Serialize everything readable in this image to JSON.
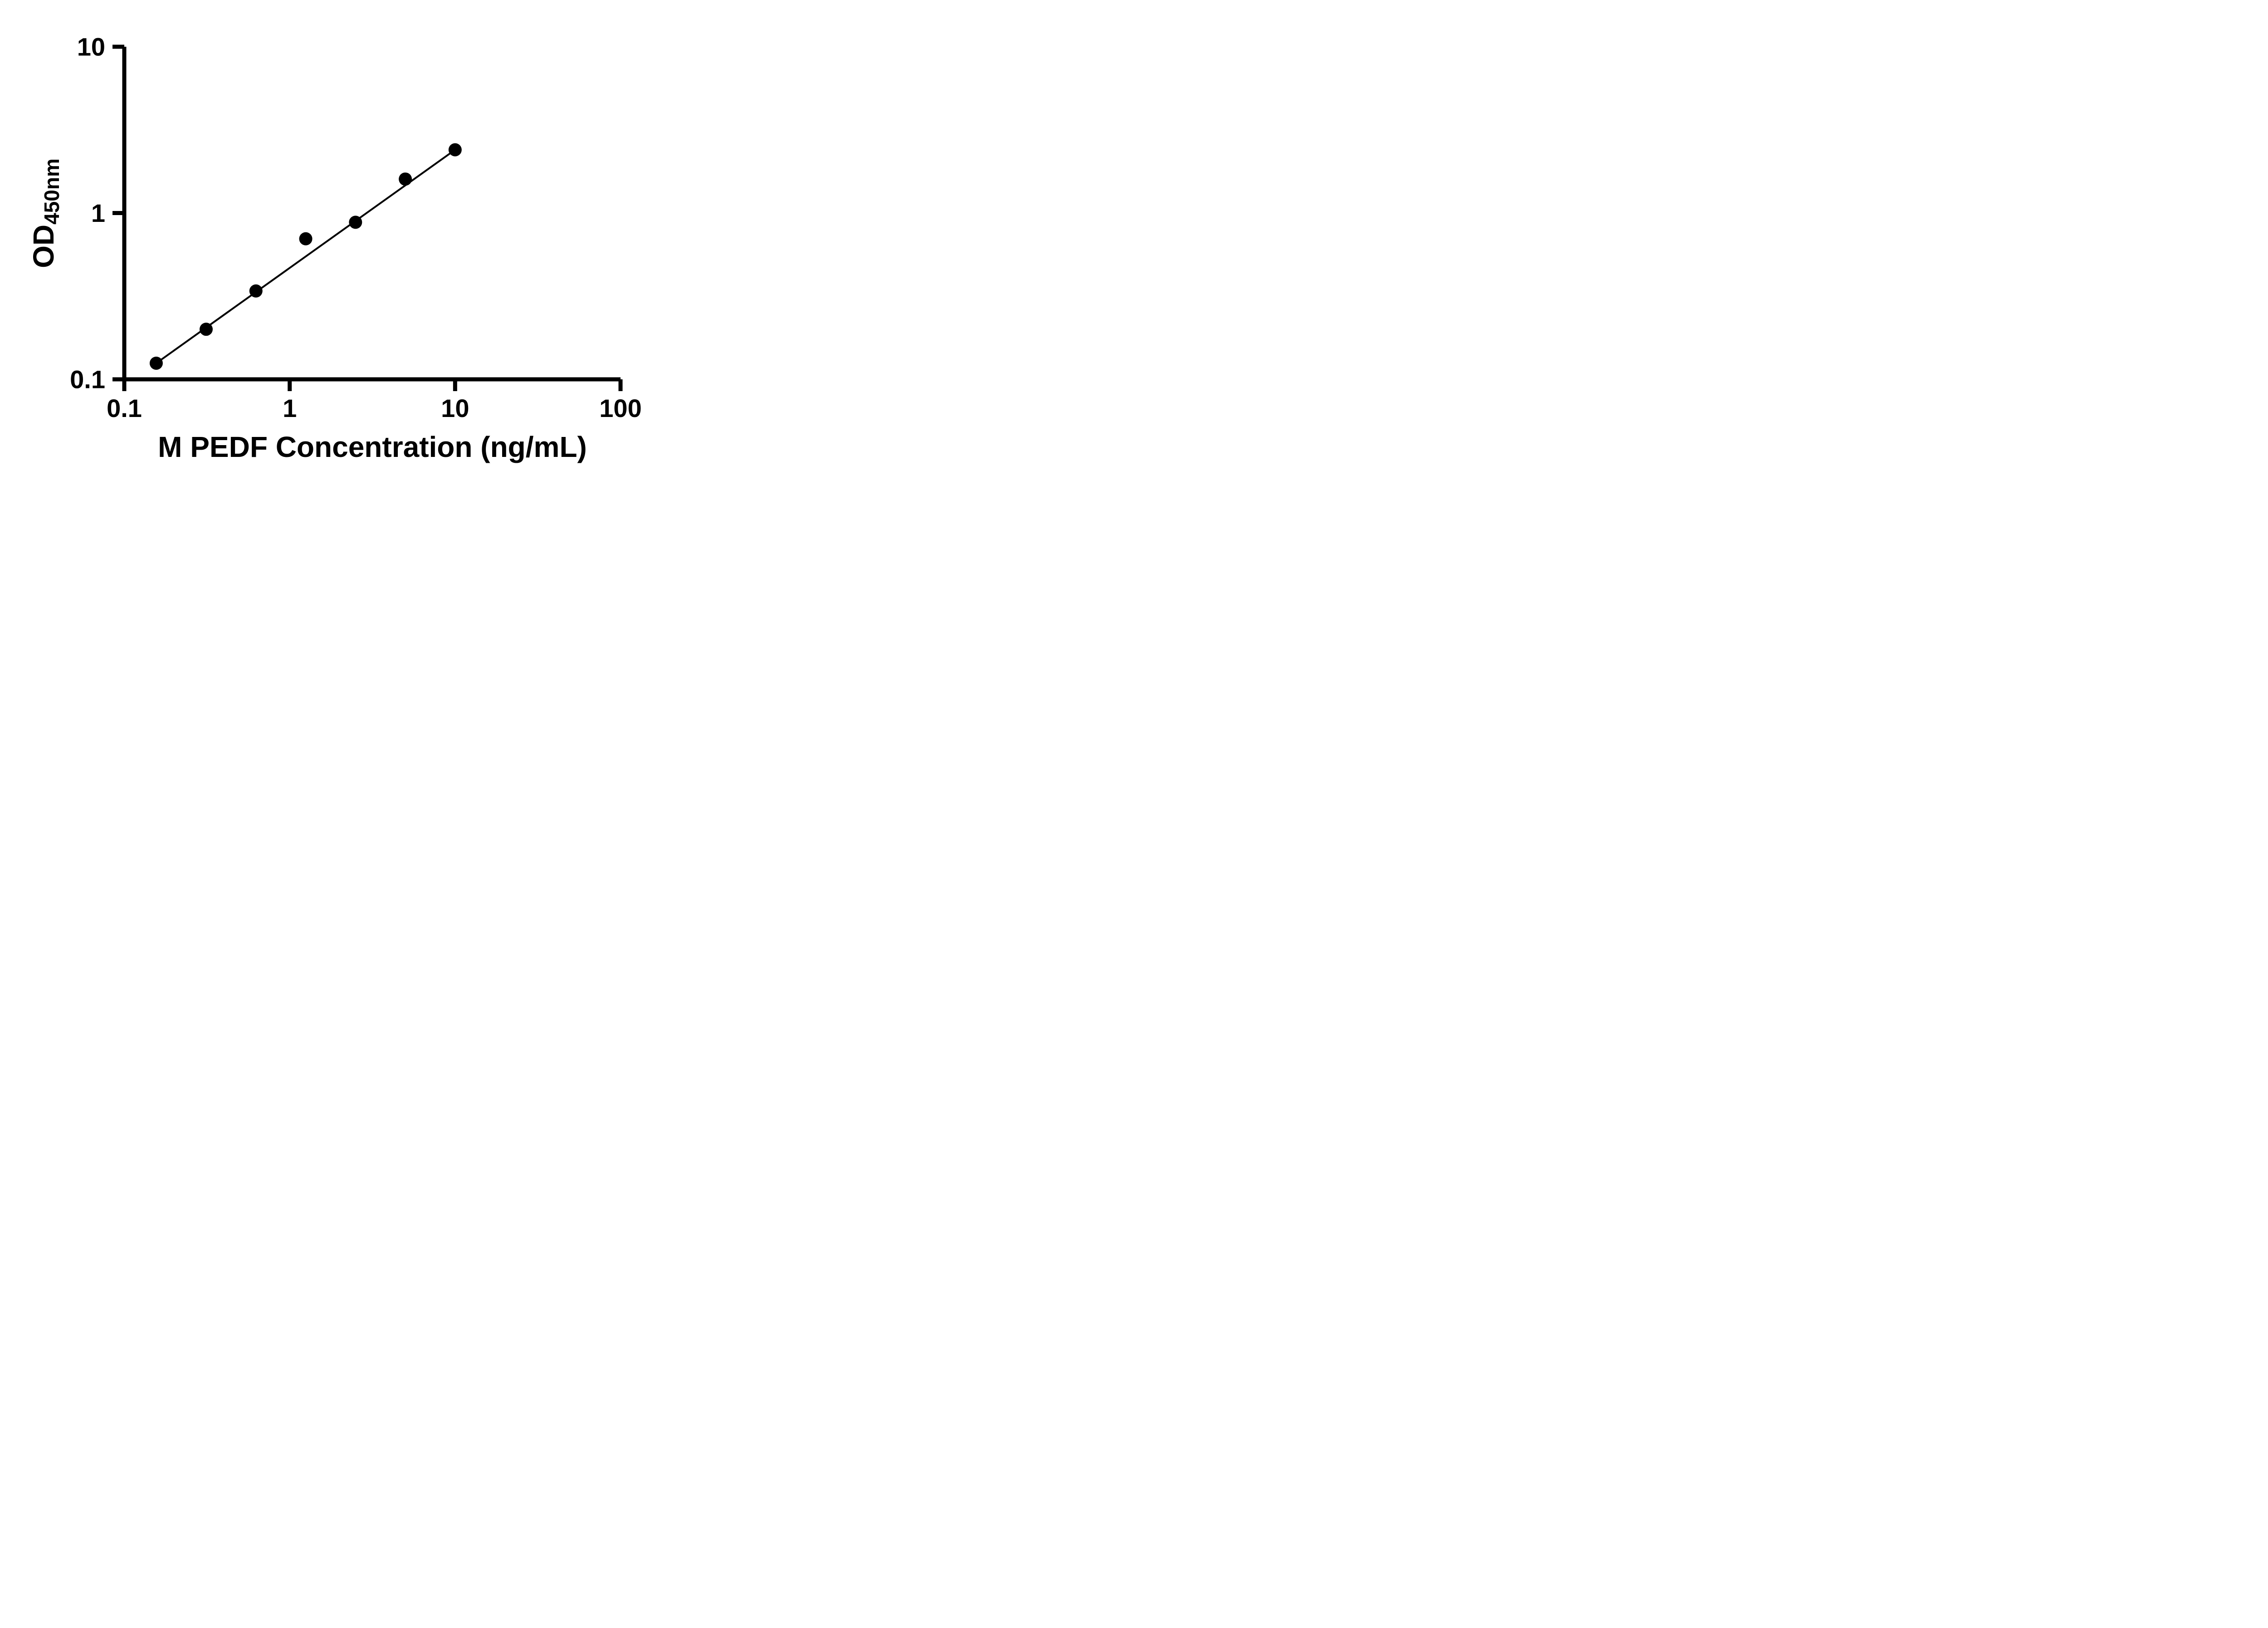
{
  "chart_data": {
    "type": "scatter",
    "title": "",
    "xlabel": "M PEDF Concentration (ng/mL)",
    "ylabel_main": "OD",
    "ylabel_sub": "450nm",
    "x_scale": "log",
    "y_scale": "log",
    "xlim": [
      0.1,
      100
    ],
    "ylim": [
      0.1,
      10
    ],
    "x_ticks": [
      0.1,
      1,
      10,
      100
    ],
    "x_tick_labels": [
      "0.1",
      "1",
      "10",
      "100"
    ],
    "y_ticks": [
      0.1,
      1,
      10
    ],
    "y_tick_labels": [
      "0.1",
      "1",
      "10"
    ],
    "grid": false,
    "legend": "none",
    "points": [
      {
        "x": 0.156,
        "y": 0.125
      },
      {
        "x": 0.3125,
        "y": 0.2
      },
      {
        "x": 0.625,
        "y": 0.34
      },
      {
        "x": 1.25,
        "y": 0.7
      },
      {
        "x": 2.5,
        "y": 0.88
      },
      {
        "x": 5,
        "y": 1.6
      },
      {
        "x": 10,
        "y": 2.4
      }
    ],
    "trend_line": {
      "x": [
        0.156,
        10
      ],
      "y": [
        0.125,
        2.4
      ]
    },
    "marker_color": "#000000",
    "line_color": "#000000",
    "axis_color": "#000000"
  }
}
